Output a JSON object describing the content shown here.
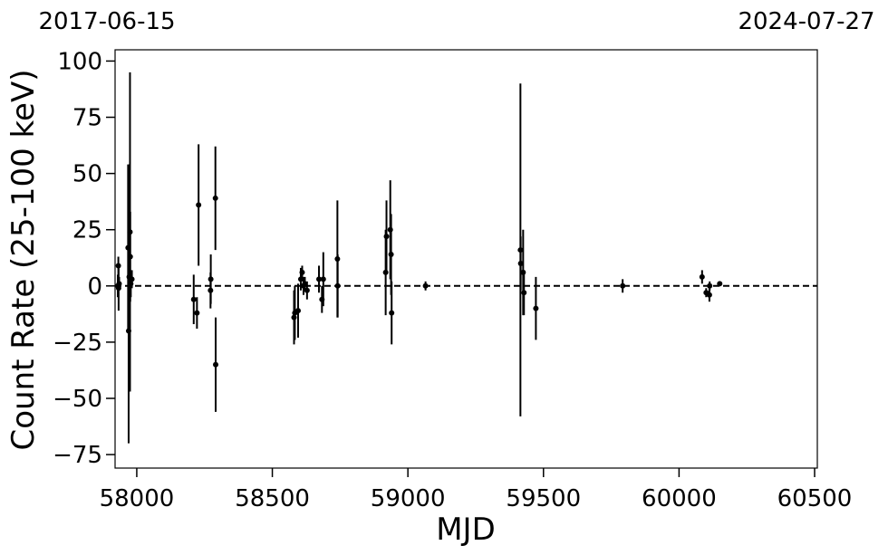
{
  "chart_data": {
    "type": "scatter",
    "title": "",
    "xlabel": "MJD",
    "ylabel": "Count Rate (25-100 keV)",
    "top_labels": {
      "left": "2017-06-15",
      "right": "2024-07-27"
    },
    "xlim": [
      57920,
      60510
    ],
    "ylim": [
      -81,
      105
    ],
    "xticks": [
      58000,
      58500,
      59000,
      59500,
      60000,
      60500
    ],
    "xtick_labels": [
      "58000",
      "58500",
      "59000",
      "59500",
      "60000",
      "60500"
    ],
    "yticks": [
      -75,
      -50,
      -25,
      0,
      25,
      50,
      75,
      100
    ],
    "ytick_labels": [
      "−75",
      "−50",
      "−25",
      "0",
      "25",
      "50",
      "75",
      "100"
    ],
    "reference_line": {
      "y": 0,
      "style": "dashed",
      "color": "#000000"
    },
    "grid": false,
    "legend": "none",
    "marker_color": "#000000",
    "series": [
      {
        "points": [
          {
            "x": 57930,
            "y": 0,
            "err": 5
          },
          {
            "x": 57932,
            "y": 9,
            "err": 4
          },
          {
            "x": 57933,
            "y": -1,
            "err": 10
          },
          {
            "x": 57935,
            "y": 1,
            "err": 3
          },
          {
            "x": 57968,
            "y": 17,
            "err": 37
          },
          {
            "x": 57970,
            "y": -20,
            "err": 50
          },
          {
            "x": 57972,
            "y": 4,
            "err": 50
          },
          {
            "x": 57975,
            "y": 24,
            "err": 71
          },
          {
            "x": 57976,
            "y": 13,
            "err": 20
          },
          {
            "x": 57978,
            "y": 1,
            "err": 6
          },
          {
            "x": 57982,
            "y": 3,
            "err": 4
          },
          {
            "x": 58210,
            "y": -6,
            "err": 11
          },
          {
            "x": 58222,
            "y": -12,
            "err": 7
          },
          {
            "x": 58228,
            "y": 36,
            "err": 27
          },
          {
            "x": 58272,
            "y": -2,
            "err": 8
          },
          {
            "x": 58273,
            "y": 3,
            "err": 11
          },
          {
            "x": 58290,
            "y": 39,
            "err": 23
          },
          {
            "x": 58291,
            "y": -35,
            "err": 21
          },
          {
            "x": 58580,
            "y": -14,
            "err": 12
          },
          {
            "x": 58583,
            "y": -12,
            "err": 12
          },
          {
            "x": 58595,
            "y": -11,
            "err": 12
          },
          {
            "x": 58605,
            "y": 3,
            "err": 5
          },
          {
            "x": 58610,
            "y": 6,
            "err": 3
          },
          {
            "x": 58615,
            "y": 0,
            "err": 4
          },
          {
            "x": 58620,
            "y": 1,
            "err": 3
          },
          {
            "x": 58628,
            "y": -2,
            "err": 4
          },
          {
            "x": 58672,
            "y": 3,
            "err": 6
          },
          {
            "x": 58683,
            "y": -6,
            "err": 6
          },
          {
            "x": 58688,
            "y": 3,
            "err": 12
          },
          {
            "x": 58740,
            "y": 12,
            "err": 26
          },
          {
            "x": 58741,
            "y": 0,
            "err": 14
          },
          {
            "x": 58918,
            "y": 6,
            "err": 19
          },
          {
            "x": 58921,
            "y": 22,
            "err": 16
          },
          {
            "x": 58935,
            "y": 25,
            "err": 22
          },
          {
            "x": 58938,
            "y": 14,
            "err": 18
          },
          {
            "x": 58940,
            "y": -12,
            "err": 14
          },
          {
            "x": 59065,
            "y": 0,
            "err": 2
          },
          {
            "x": 59415,
            "y": 16,
            "err": 74
          },
          {
            "x": 59416,
            "y": 10,
            "err": 12
          },
          {
            "x": 59425,
            "y": 6,
            "err": 19
          },
          {
            "x": 59428,
            "y": -3,
            "err": 10
          },
          {
            "x": 59472,
            "y": -10,
            "err": 14
          },
          {
            "x": 59792,
            "y": 0,
            "err": 3
          },
          {
            "x": 60085,
            "y": 4,
            "err": 3
          },
          {
            "x": 60100,
            "y": -3,
            "err": 2
          },
          {
            "x": 60112,
            "y": -4,
            "err": 3
          },
          {
            "x": 60113,
            "y": 0,
            "err": 2
          },
          {
            "x": 60150,
            "y": 1,
            "err": 1
          }
        ]
      }
    ]
  }
}
